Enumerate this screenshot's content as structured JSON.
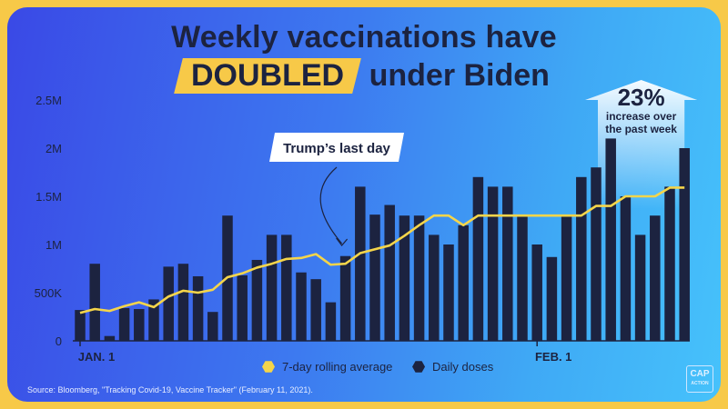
{
  "title": {
    "line1": "Weekly vaccinations have",
    "highlight": "DOUBLED",
    "line2_rest": "under Biden"
  },
  "source": "Source: Bloomberg, \"Tracking Covid-19, Vaccine Tracker\" (February 11, 2021).",
  "logo": {
    "main": "CAP",
    "sub": "ACTION"
  },
  "colors": {
    "bars": "#1c2340",
    "line": "#f5d54a",
    "highlight": "#f7c948",
    "text": "#1c2340"
  },
  "chart_data": {
    "type": "bar",
    "ylim": [
      0,
      2500000
    ],
    "y_ticks": [
      {
        "value": 0,
        "label": "0"
      },
      {
        "value": 500000,
        "label": "500K"
      },
      {
        "value": 1000000,
        "label": "1M"
      },
      {
        "value": 1500000,
        "label": "1.5M"
      },
      {
        "value": 2000000,
        "label": "2M"
      },
      {
        "value": 2500000,
        "label": "2.5M"
      }
    ],
    "x_labels": [
      {
        "day_index": 0,
        "label": "JAN. 1"
      },
      {
        "day_index": 31,
        "label": "FEB. 1"
      }
    ],
    "series": [
      {
        "name": "Daily doses",
        "type": "bar",
        "values": [
          320000,
          800000,
          50000,
          340000,
          330000,
          430000,
          770000,
          800000,
          670000,
          300000,
          1300000,
          680000,
          840000,
          1100000,
          1100000,
          710000,
          640000,
          400000,
          880000,
          1600000,
          1310000,
          1410000,
          1300000,
          1300000,
          1100000,
          1000000,
          1200000,
          1700000,
          1600000,
          1600000,
          1300000,
          1000000,
          870000,
          1300000,
          1700000,
          1800000,
          2100000,
          1500000,
          1100000,
          1300000,
          1600000,
          2000000
        ]
      },
      {
        "name": "7-day rolling average",
        "type": "line",
        "values": [
          290000,
          330000,
          310000,
          360000,
          400000,
          350000,
          460000,
          520000,
          500000,
          530000,
          660000,
          700000,
          760000,
          800000,
          850000,
          860000,
          900000,
          790000,
          800000,
          910000,
          950000,
          990000,
          1090000,
          1200000,
          1300000,
          1300000,
          1200000,
          1300000,
          1300000,
          1300000,
          1300000,
          1300000,
          1300000,
          1300000,
          1300000,
          1400000,
          1400000,
          1500000,
          1500000,
          1500000,
          1590000,
          1590000
        ]
      }
    ],
    "annotations": [
      {
        "day_index": 18,
        "text": "Trump’s last day"
      },
      {
        "day_index": 40,
        "big": "23%",
        "text_lines": [
          "increase over",
          "the past week"
        ]
      }
    ]
  }
}
